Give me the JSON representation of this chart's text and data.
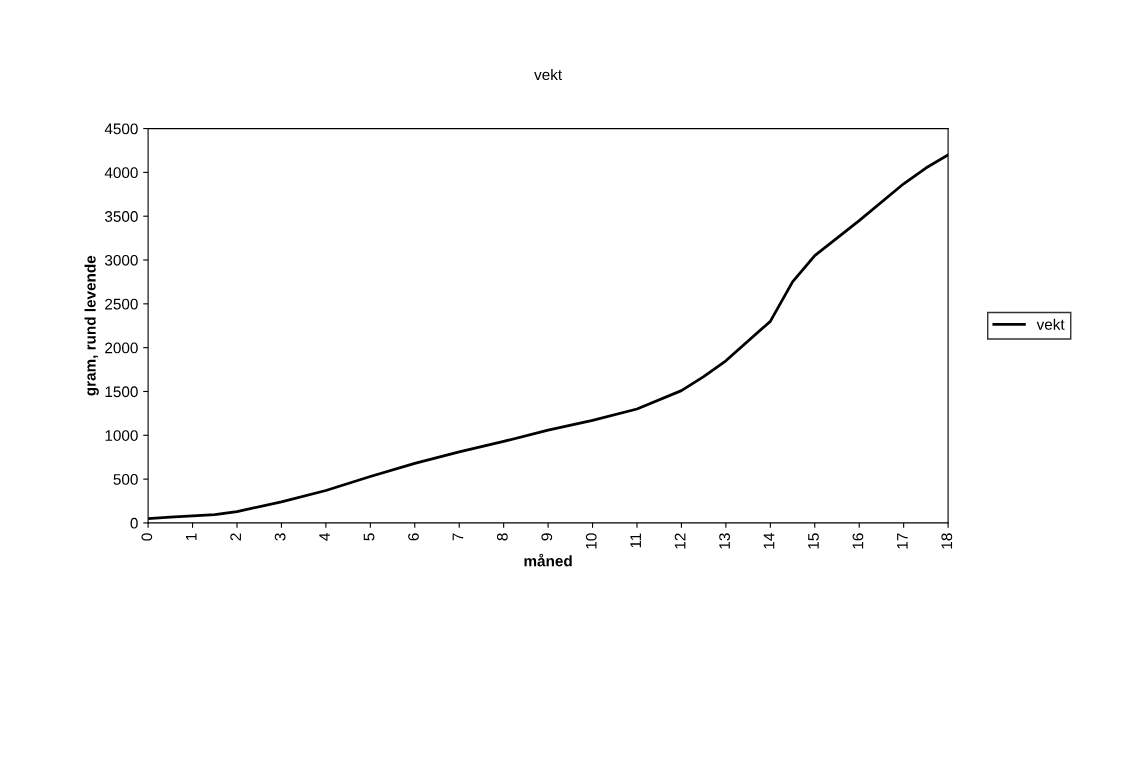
{
  "chart_data": {
    "type": "line",
    "title": "vekt",
    "xlabel": "måned",
    "ylabel": "gram, rund levende",
    "x": [
      0,
      0.5,
      1,
      1.5,
      2,
      3,
      4,
      5,
      6,
      7,
      8,
      9,
      10,
      11,
      12,
      12.5,
      13,
      14,
      14.5,
      15,
      16,
      17,
      17.5,
      18
    ],
    "series": [
      {
        "name": "vekt",
        "color": "#000000",
        "values": [
          50,
          65,
          80,
          95,
          130,
          240,
          370,
          530,
          680,
          810,
          930,
          1060,
          1170,
          1300,
          1510,
          1670,
          1850,
          2300,
          2750,
          3050,
          3450,
          3870,
          4050,
          4200
        ]
      }
    ],
    "xlim": [
      0,
      18
    ],
    "xticks": [
      0,
      1,
      2,
      3,
      4,
      5,
      6,
      7,
      8,
      9,
      10,
      11,
      12,
      13,
      14,
      15,
      16,
      17,
      18
    ],
    "ylim": [
      0,
      4500
    ],
    "yticks": [
      0,
      500,
      1000,
      1500,
      2000,
      2500,
      3000,
      3500,
      4000,
      4500
    ],
    "grid": false,
    "legend": "right",
    "marker": "none",
    "line_style": "solid"
  }
}
